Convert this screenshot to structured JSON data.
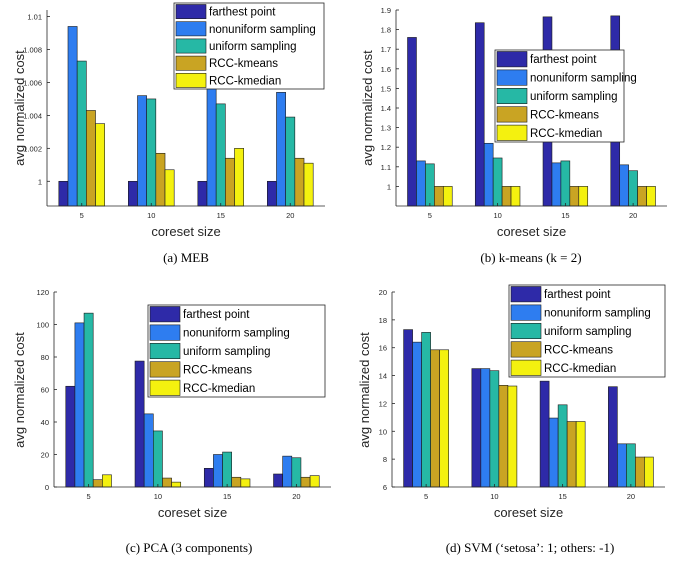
{
  "legend_labels": [
    "farthest point",
    "nonuniform sampling",
    "uniform sampling",
    "RCC-kmeans",
    "RCC-kmedian"
  ],
  "colors": {
    "series": [
      "#2e2aa8",
      "#2e7df0",
      "#26b8a5",
      "#c9a423",
      "#f4f10f"
    ],
    "axis": "#262626",
    "tick_text": "#262626",
    "caption_text": "#000000"
  },
  "chart_data": [
    {
      "type": "bar",
      "caption": "(a) MEB",
      "xlabel": "coreset size",
      "ylabel": "avg normalized cost",
      "categories": [
        "5",
        "10",
        "15",
        "20"
      ],
      "ylim": [
        0.9985,
        1.0104
      ],
      "yticks": [
        1,
        1.002,
        1.004,
        1.006,
        1.008,
        1.01
      ],
      "ytick_labels": [
        "1",
        "1.002",
        "1.004",
        "1.006",
        "1.008",
        "1.01"
      ],
      "legend_position": "top-right",
      "series": [
        {
          "name": "farthest point",
          "values": [
            1.0,
            1.0,
            1.0,
            1.0
          ]
        },
        {
          "name": "nonuniform sampling",
          "values": [
            1.0094,
            1.0052,
            1.006,
            1.0054
          ]
        },
        {
          "name": "uniform sampling",
          "values": [
            1.0073,
            1.005,
            1.0047,
            1.0039
          ]
        },
        {
          "name": "RCC-kmeans",
          "values": [
            1.0043,
            1.0017,
            1.0014,
            1.0014
          ]
        },
        {
          "name": "RCC-kmedian",
          "values": [
            1.0035,
            1.0007,
            1.002,
            1.0011
          ]
        }
      ]
    },
    {
      "type": "bar",
      "caption": "(b) k-means (k = 2)",
      "xlabel": "coreset size",
      "ylabel": "avg normalized cost",
      "categories": [
        "5",
        "10",
        "15",
        "20"
      ],
      "ylim": [
        0.9,
        1.9
      ],
      "yticks": [
        1,
        1.1,
        1.2,
        1.3,
        1.4,
        1.5,
        1.6,
        1.7,
        1.8,
        1.9
      ],
      "ytick_labels": [
        "1",
        "1.1",
        "1.2",
        "1.3",
        "1.4",
        "1.5",
        "1.6",
        "1.7",
        "1.8",
        "1.9"
      ],
      "legend_position": "right",
      "series": [
        {
          "name": "farthest point",
          "values": [
            1.76,
            1.835,
            1.865,
            1.87
          ]
        },
        {
          "name": "nonuniform sampling",
          "values": [
            1.13,
            1.22,
            1.12,
            1.11
          ]
        },
        {
          "name": "uniform sampling",
          "values": [
            1.115,
            1.145,
            1.13,
            1.08
          ]
        },
        {
          "name": "RCC-kmeans",
          "values": [
            1.0,
            1.0,
            1.0,
            1.0
          ]
        },
        {
          "name": "RCC-kmedian",
          "values": [
            1.0,
            1.0,
            1.0,
            1.0
          ]
        }
      ]
    },
    {
      "type": "bar",
      "caption": "(c) PCA (3 components)",
      "xlabel": "coreset size",
      "ylabel": "avg normalized cost",
      "categories": [
        "5",
        "10",
        "15",
        "20"
      ],
      "ylim": [
        0,
        120
      ],
      "yticks": [
        0,
        20,
        40,
        60,
        80,
        100,
        120
      ],
      "ytick_labels": [
        "0",
        "20",
        "40",
        "60",
        "80",
        "100",
        "120"
      ],
      "legend_position": "top-right",
      "series": [
        {
          "name": "farthest point",
          "values": [
            62,
            77.5,
            11.5,
            8
          ]
        },
        {
          "name": "nonuniform sampling",
          "values": [
            101,
            45,
            20,
            19
          ]
        },
        {
          "name": "uniform sampling",
          "values": [
            107,
            34.5,
            21.5,
            18
          ]
        },
        {
          "name": "RCC-kmeans",
          "values": [
            4.5,
            5.5,
            6,
            6
          ]
        },
        {
          "name": "RCC-kmedian",
          "values": [
            7.5,
            3,
            5,
            7
          ]
        }
      ]
    },
    {
      "type": "bar",
      "caption": "(d) SVM (‘setosa’: 1; others: -1)",
      "xlabel": "coreset size",
      "ylabel": "avg normalized cost",
      "categories": [
        "5",
        "10",
        "15",
        "20"
      ],
      "ylim": [
        6,
        20
      ],
      "yticks": [
        6,
        8,
        10,
        12,
        14,
        16,
        18,
        20
      ],
      "ytick_labels": [
        "6",
        "8",
        "10",
        "12",
        "14",
        "16",
        "18",
        "20"
      ],
      "legend_position": "top-right",
      "series": [
        {
          "name": "farthest point",
          "values": [
            17.3,
            14.5,
            13.6,
            13.2
          ]
        },
        {
          "name": "nonuniform sampling",
          "values": [
            16.4,
            14.5,
            10.95,
            9.1
          ]
        },
        {
          "name": "uniform sampling",
          "values": [
            17.1,
            14.35,
            11.9,
            9.1
          ]
        },
        {
          "name": "RCC-kmeans",
          "values": [
            15.85,
            13.3,
            10.7,
            8.15
          ]
        },
        {
          "name": "RCC-kmedian",
          "values": [
            15.85,
            13.25,
            10.7,
            8.15
          ]
        }
      ]
    }
  ]
}
